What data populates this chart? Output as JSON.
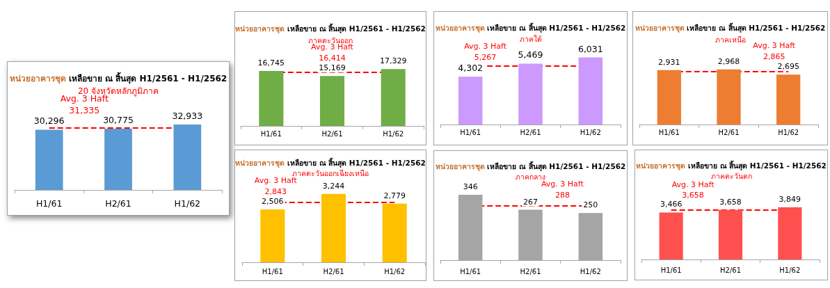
{
  "chart_data": [
    {
      "type": "bar",
      "title": "หน่วยอาคารชุด เหลือขาย ณ สิ้นสุด H1/2561 - H1/2562",
      "subtitle": "20 จังหวัดหลักภูมิภาค",
      "categories": [
        "H1/61",
        "H2/61",
        "H1/62"
      ],
      "values": [
        30296,
        30775,
        32933
      ],
      "value_labels": [
        "30,296",
        "30,775",
        "32,933"
      ],
      "color": "#5b9bd5",
      "tick_labels": "x",
      "ref_lines": [
        {
          "axis": "y",
          "value": 31335,
          "label": "Avg. 3 Haft\n31,335",
          "color": "#ff0000",
          "line_style": "dashed"
        }
      ]
    },
    {
      "type": "bar",
      "title": "หน่วยอาคารชุด เหลือขาย ณ สิ้นสุด H1/2561 - H1/2562",
      "subtitle": "ภาคตะวันออก",
      "categories": [
        "H1/61",
        "H2/61",
        "H1/62"
      ],
      "values": [
        16745,
        15169,
        17329
      ],
      "value_labels": [
        "16,745",
        "15,169",
        "17,329"
      ],
      "color": "#70ad47",
      "tick_labels": "x",
      "ref_lines": [
        {
          "axis": "y",
          "value": 16414,
          "label": "Avg. 3 Haft\n16,414",
          "color": "#ff0000",
          "line_style": "dashed"
        }
      ]
    },
    {
      "type": "bar",
      "title": "หน่วยอาคารชุด เหลือขาย ณ สิ้นสุด H1/2561 - H1/2562",
      "subtitle": "ภาคใต้",
      "categories": [
        "H1/61",
        "H2/61",
        "H1/62"
      ],
      "values": [
        4302,
        5469,
        6031
      ],
      "value_labels": [
        "4,302",
        "5,469",
        "6,031"
      ],
      "color": "#cc99ff",
      "tick_labels": "x",
      "ref_lines": [
        {
          "axis": "y",
          "value": 5267,
          "label": "Avg. 3 Haft\n5,267",
          "color": "#ff0000",
          "line_style": "dashed"
        }
      ]
    },
    {
      "type": "bar",
      "title": "หน่วยอาคารชุด เหลือขาย ณ สิ้นสุด H1/2561 - H1/2562",
      "subtitle": "ภาคเหนือ",
      "categories": [
        "H1/61",
        "H2/61",
        "H1/62"
      ],
      "values": [
        2931,
        2968,
        2695
      ],
      "value_labels": [
        "2,931",
        "2,968",
        "2,695"
      ],
      "color": "#ed7d31",
      "tick_labels": "x",
      "ref_lines": [
        {
          "axis": "y",
          "value": 2865,
          "label": "Avg. 3 Haft\n2,865",
          "color": "#ff0000",
          "line_style": "dashed"
        }
      ]
    },
    {
      "type": "bar",
      "title": "หน่วยอาคารชุด เหลือขาย ณ สิ้นสุด H1/2561 - H1/2562",
      "subtitle": "ภาคตะวันออกเฉียงเหนือ",
      "categories": [
        "H1/61",
        "H2/61",
        "H1/62"
      ],
      "values": [
        2506,
        3244,
        2779
      ],
      "value_labels": [
        "2,506",
        "3,244",
        "2,779"
      ],
      "color": "#ffc000",
      "tick_labels": "x",
      "ref_lines": [
        {
          "axis": "y",
          "value": 2843,
          "label": "Avg. 3 Haft\n2,843",
          "color": "#ff0000",
          "line_style": "dashed"
        }
      ]
    },
    {
      "type": "bar",
      "title": "หน่วยอาคารชุด เหลือขาย ณ สิ้นสุด H1/2561 - H1/2562",
      "subtitle": "ภาคกลาง",
      "categories": [
        "H1/61",
        "H2/61",
        "H1/62"
      ],
      "values": [
        346,
        267,
        250
      ],
      "value_labels": [
        "346",
        "267",
        "250"
      ],
      "color": "#a5a5a5",
      "tick_labels": "x",
      "ref_lines": [
        {
          "axis": "y",
          "value": 288,
          "label": "Avg. 3 Haft\n288",
          "color": "#ff0000",
          "line_style": "dashed"
        }
      ]
    },
    {
      "type": "bar",
      "title": "หน่วยอาคารชุด เหลือขาย ณ สิ้นสุด H1/2561 - H1/2562",
      "subtitle": "ภาคตะวันตก",
      "categories": [
        "H1/61",
        "H2/61",
        "H1/62"
      ],
      "values": [
        3466,
        3658,
        3849
      ],
      "value_labels": [
        "3,466",
        "3,658",
        "3,849"
      ],
      "color": "#ff5050",
      "tick_labels": "x",
      "ref_lines": [
        {
          "axis": "y",
          "value": 3658,
          "label": "Avg. 3 Haft\n3,658",
          "color": "#ff0000",
          "line_style": "dashed"
        }
      ]
    }
  ]
}
